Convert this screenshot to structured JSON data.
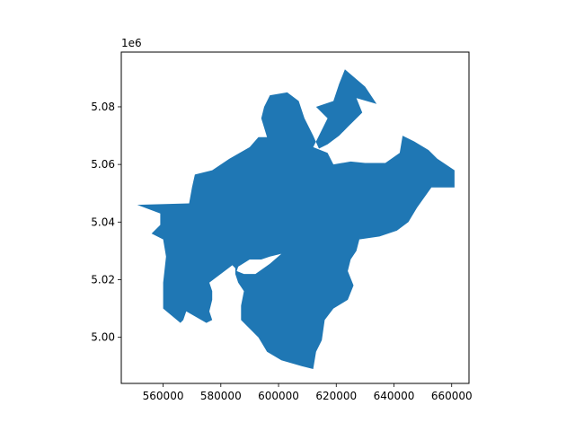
{
  "chart_data": {
    "type": "area",
    "title": "",
    "xlabel": "",
    "ylabel": "",
    "y_offset_text": "1e6",
    "xlim": [
      545500,
      666000
    ],
    "ylim": [
      4984000,
      5099000
    ],
    "x_ticks": [
      560000,
      580000,
      600000,
      620000,
      640000,
      660000
    ],
    "x_tick_labels": [
      "560000",
      "580000",
      "600000",
      "620000",
      "640000",
      "660000"
    ],
    "y_ticks": [
      5000000,
      5020000,
      5040000,
      5060000,
      5080000
    ],
    "y_tick_labels": [
      "5.00",
      "5.02",
      "5.04",
      "5.06",
      "5.08"
    ],
    "grid": false,
    "fill_color": "#1f77b4",
    "series": [
      {
        "points": [
          [
            551000,
            5046000
          ],
          [
            569000,
            5046500
          ],
          [
            570000,
            5052000
          ],
          [
            571000,
            5056500
          ],
          [
            577000,
            5058000
          ],
          [
            583000,
            5062000
          ],
          [
            590000,
            5066000
          ],
          [
            593000,
            5069500
          ],
          [
            596000,
            5069500
          ],
          [
            594000,
            5076000
          ],
          [
            595000,
            5080000
          ],
          [
            597000,
            5084000
          ],
          [
            603000,
            5085000
          ],
          [
            607000,
            5082000
          ],
          [
            609000,
            5076000
          ],
          [
            612000,
            5070000
          ],
          [
            614000,
            5065500
          ],
          [
            617000,
            5067000
          ],
          [
            621000,
            5070000
          ],
          [
            624000,
            5073000
          ],
          [
            629000,
            5078000
          ],
          [
            627000,
            5083000
          ],
          [
            634000,
            5081000
          ],
          [
            630000,
            5087000
          ],
          [
            623000,
            5093000
          ],
          [
            621000,
            5088000
          ],
          [
            619000,
            5082000
          ],
          [
            613000,
            5080000
          ],
          [
            617000,
            5076000
          ],
          [
            614000,
            5070000
          ],
          [
            612000,
            5066000
          ],
          [
            617000,
            5064000
          ],
          [
            619000,
            5060000
          ],
          [
            625000,
            5061000
          ],
          [
            630000,
            5060500
          ],
          [
            637000,
            5060500
          ],
          [
            642000,
            5064000
          ],
          [
            643000,
            5070000
          ],
          [
            647000,
            5068000
          ],
          [
            652000,
            5065000
          ],
          [
            655000,
            5062000
          ],
          [
            661000,
            5058000
          ],
          [
            661000,
            5052000
          ],
          [
            653000,
            5052000
          ],
          [
            648000,
            5045000
          ],
          [
            645000,
            5040000
          ],
          [
            641000,
            5037000
          ],
          [
            635000,
            5035000
          ],
          [
            628000,
            5034000
          ],
          [
            627000,
            5030000
          ],
          [
            625000,
            5027000
          ],
          [
            624000,
            5023000
          ],
          [
            626000,
            5018000
          ],
          [
            624000,
            5013000
          ],
          [
            619000,
            5010000
          ],
          [
            616000,
            5006000
          ],
          [
            615000,
            4999000
          ],
          [
            613000,
            4995000
          ],
          [
            612000,
            4989000
          ],
          [
            608000,
            4990000
          ],
          [
            601000,
            4992000
          ],
          [
            596000,
            4995000
          ],
          [
            593000,
            5000000
          ],
          [
            590000,
            5003000
          ],
          [
            587000,
            5006000
          ],
          [
            587000,
            5011000
          ],
          [
            588000,
            5016000
          ],
          [
            586000,
            5019000
          ],
          [
            585000,
            5022000
          ],
          [
            585000,
            5024000
          ],
          [
            584000,
            5025000
          ],
          [
            576000,
            5019000
          ],
          [
            577000,
            5016000
          ],
          [
            577000,
            5013000
          ],
          [
            576000,
            5009000
          ],
          [
            577000,
            5006000
          ],
          [
            575000,
            5005000
          ],
          [
            568000,
            5009000
          ],
          [
            567000,
            5006000
          ],
          [
            566000,
            5005000
          ],
          [
            560000,
            5010000
          ],
          [
            560000,
            5019000
          ],
          [
            561000,
            5028000
          ],
          [
            560000,
            5034000
          ],
          [
            556000,
            5036000
          ],
          [
            559000,
            5039000
          ],
          [
            559000,
            5043000
          ]
        ]
      }
    ],
    "holes": [
      [
        [
          586000,
          5024500
        ],
        [
          590000,
          5027000
        ],
        [
          594000,
          5027000
        ],
        [
          597000,
          5028000
        ],
        [
          601000,
          5029000
        ],
        [
          597000,
          5025500
        ],
        [
          592000,
          5022000
        ],
        [
          588000,
          5022000
        ],
        [
          585500,
          5023000
        ]
      ]
    ]
  }
}
